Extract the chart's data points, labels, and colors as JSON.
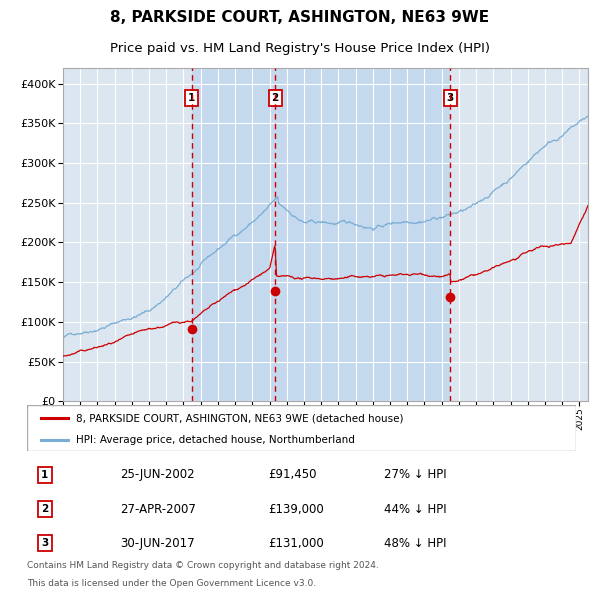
{
  "title": "8, PARKSIDE COURT, ASHINGTON, NE63 9WE",
  "subtitle": "Price paid vs. HM Land Registry's House Price Index (HPI)",
  "legend_red": "8, PARKSIDE COURT, ASHINGTON, NE63 9WE (detached house)",
  "legend_blue": "HPI: Average price, detached house, Northumberland",
  "transactions": [
    {
      "label": "1",
      "date_str": "25-JUN-2002",
      "date_num": 2002.48,
      "price": 91450,
      "pct": "27% ↓ HPI"
    },
    {
      "label": "2",
      "date_str": "27-APR-2007",
      "date_num": 2007.32,
      "price": 139000,
      "pct": "44% ↓ HPI"
    },
    {
      "label": "3",
      "date_str": "30-JUN-2017",
      "date_num": 2017.49,
      "price": 131000,
      "pct": "48% ↓ HPI"
    }
  ],
  "footer1": "Contains HM Land Registry data © Crown copyright and database right 2024.",
  "footer2": "This data is licensed under the Open Government Licence v3.0.",
  "ylim": [
    0,
    420000
  ],
  "xlim_start": 1995.0,
  "xlim_end": 2025.5,
  "background_color": "#ffffff",
  "plot_bg_color": "#dce6f0",
  "grid_color": "#ffffff",
  "shade_color": "#c5d9ee",
  "red_line_color": "#cc0000",
  "blue_line_color": "#7aadd4",
  "dashed_line_color": "#cc0000",
  "title_fontsize": 11,
  "subtitle_fontsize": 9.5
}
